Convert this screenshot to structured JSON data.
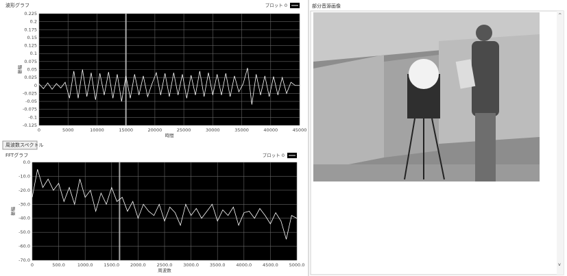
{
  "chart_data": [
    {
      "type": "line",
      "title": "波形グラフ",
      "xlabel": "時間",
      "ylabel": "振幅",
      "grid": true,
      "cursor_x": 15000,
      "xlim": [
        0,
        45000
      ],
      "xticks": [
        0,
        5000,
        10000,
        15000,
        20000,
        25000,
        30000,
        35000,
        40000,
        45000
      ],
      "ylim": [
        -0.125,
        0.225
      ],
      "yticks": [
        -0.125,
        -0.1,
        -0.075,
        -0.05,
        -0.025,
        0,
        0.025,
        0.05,
        0.075,
        0.1,
        0.125,
        0.15,
        0.175,
        0.2,
        0.225
      ],
      "x": [
        0,
        750,
        1500,
        2250,
        3000,
        3750,
        4500,
        5250,
        6000,
        6750,
        7500,
        8250,
        9000,
        9750,
        10500,
        11250,
        12000,
        12750,
        13500,
        14250,
        15000,
        15750,
        16500,
        17250,
        18000,
        18750,
        19500,
        20250,
        21000,
        21750,
        22500,
        23250,
        24000,
        24750,
        25500,
        26250,
        27000,
        27750,
        28500,
        29250,
        30000,
        30750,
        31500,
        32250,
        33000,
        33750,
        34500,
        35250,
        36000,
        36750,
        37500,
        38250,
        39000,
        39750,
        40500,
        41250,
        42000,
        42750,
        43500,
        44250,
        45000
      ],
      "series": [
        {
          "name": "プロット 0",
          "color": "#ffffff",
          "values": [
            0.005,
            -0.01,
            0.008,
            -0.012,
            0.006,
            -0.008,
            0.01,
            -0.04,
            0.045,
            -0.04,
            0.05,
            -0.035,
            0.04,
            -0.045,
            0.038,
            -0.03,
            0.042,
            -0.04,
            0.035,
            -0.05,
            0.03,
            -0.04,
            0.035,
            -0.03,
            0.03,
            -0.035,
            0.005,
            0.04,
            -0.03,
            0.038,
            -0.035,
            0.04,
            -0.03,
            0.035,
            -0.04,
            0.032,
            -0.03,
            0.045,
            -0.035,
            0.04,
            -0.03,
            0.035,
            -0.03,
            0.038,
            -0.035,
            0.03,
            -0.02,
            0.005,
            0.055,
            -0.06,
            0.035,
            -0.03,
            0.03,
            -0.035,
            0.028,
            -0.03,
            0.025,
            -0.025,
            0.01,
            0,
            0
          ]
        }
      ]
    },
    {
      "type": "line",
      "title": "FFTグラフ",
      "tab_label": "周波数スペクトル",
      "xlabel": "周波数",
      "ylabel": "振幅",
      "grid": true,
      "cursor_x": 1650,
      "xlim": [
        0,
        5000
      ],
      "xticks": [
        0,
        {
          "value": 500,
          "label": "500.0"
        },
        {
          "value": 1000,
          "label": "1000.0"
        },
        {
          "value": 1500,
          "label": "1500.0"
        },
        {
          "value": 2000,
          "label": "2000.0"
        },
        {
          "value": 2500,
          "label": "2500.0"
        },
        {
          "value": 3000,
          "label": "3000.0"
        },
        {
          "value": 3500,
          "label": "3500.0"
        },
        {
          "value": 4000,
          "label": "4000.0"
        },
        {
          "value": 4500,
          "label": "4500.0"
        },
        {
          "value": 5000,
          "label": "5000.0"
        }
      ],
      "ylim": [
        -70,
        0
      ],
      "yticks": [
        {
          "value": -70,
          "label": "-70.0"
        },
        {
          "value": -60,
          "label": "-60.0"
        },
        {
          "value": -50,
          "label": "-50.0"
        },
        {
          "value": -40,
          "label": "-40.0"
        },
        {
          "value": -30,
          "label": "-30.0"
        },
        {
          "value": -20,
          "label": "-20.0"
        },
        {
          "value": -10,
          "label": "-10.0"
        },
        {
          "value": 0,
          "label": "0.0"
        }
      ],
      "x": [
        0,
        100,
        200,
        300,
        400,
        500,
        600,
        700,
        800,
        900,
        1000,
        1100,
        1200,
        1300,
        1400,
        1500,
        1600,
        1700,
        1800,
        1900,
        2000,
        2100,
        2200,
        2300,
        2400,
        2500,
        2600,
        2700,
        2800,
        2900,
        3000,
        3100,
        3200,
        3300,
        3400,
        3500,
        3600,
        3700,
        3800,
        3900,
        4000,
        4100,
        4200,
        4300,
        4400,
        4500,
        4600,
        4700,
        4800,
        4900,
        5000
      ],
      "series": [
        {
          "name": "プロット 0",
          "color": "#ffffff",
          "values": [
            -25,
            -5,
            -18,
            -12,
            -20,
            -15,
            -28,
            -18,
            -30,
            -12,
            -25,
            -20,
            -35,
            -22,
            -30,
            -18,
            -28,
            -25,
            -35,
            -28,
            -40,
            -30,
            -35,
            -38,
            -30,
            -42,
            -32,
            -36,
            -45,
            -30,
            -38,
            -33,
            -40,
            -35,
            -30,
            -42,
            -34,
            -38,
            -32,
            -45,
            -36,
            -35,
            -40,
            -33,
            -38,
            -44,
            -36,
            -42,
            -55,
            -38,
            -40
          ]
        }
      ]
    }
  ],
  "image_panel": {
    "title": "部分音源画像"
  }
}
